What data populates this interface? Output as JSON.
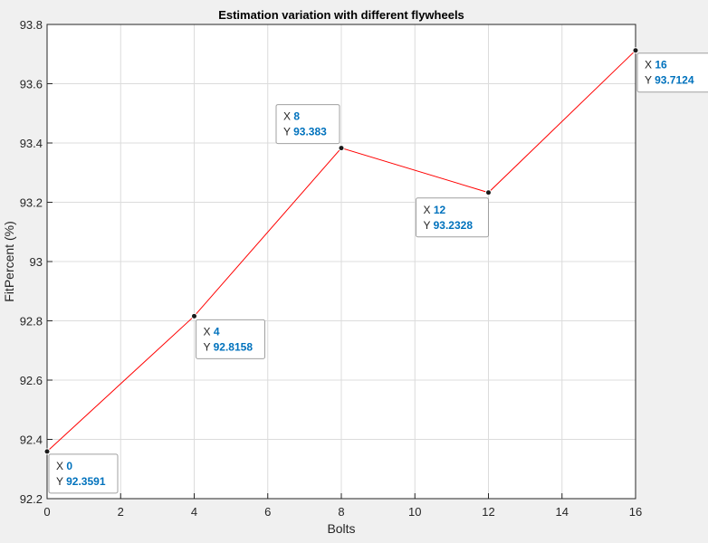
{
  "chart_data": {
    "type": "line",
    "title": "Estimation variation with different flywheels",
    "xlabel": "Bolts",
    "ylabel": "FitPercent (%)",
    "xlim": [
      0,
      16
    ],
    "ylim": [
      92.2,
      93.8
    ],
    "xticks": [
      "0",
      "2",
      "4",
      "6",
      "8",
      "10",
      "12",
      "14",
      "16"
    ],
    "yticks": [
      "92.2",
      "92.4",
      "92.6",
      "92.8",
      "93",
      "93.2",
      "93.4",
      "93.6",
      "93.8"
    ],
    "grid": true,
    "series": [
      {
        "x": [
          0,
          4,
          8,
          12,
          16
        ],
        "y": [
          92.3591,
          92.8158,
          93.383,
          93.2328,
          93.7124
        ],
        "color": "#ff0000"
      }
    ],
    "datatips": [
      {
        "x_label": "X",
        "x_value": "0",
        "y_label": "Y",
        "y_value": "92.3591"
      },
      {
        "x_label": "X",
        "x_value": "4",
        "y_label": "Y",
        "y_value": "92.8158"
      },
      {
        "x_label": "X",
        "x_value": "8",
        "y_label": "Y",
        "y_value": "93.383"
      },
      {
        "x_label": "X",
        "x_value": "12",
        "y_label": "Y",
        "y_value": "93.2328"
      },
      {
        "x_label": "X",
        "x_value": "16",
        "y_label": "Y",
        "y_value": "93.7124"
      }
    ],
    "colors": {
      "background": "#f0f0f0",
      "axes": "#ffffff",
      "grid": "#dcdcdc",
      "axis_line": "#262626",
      "datatip_value": "#0072bd",
      "datatip_border": "#a0a0a0",
      "datatip_fill": "#ffffff"
    }
  }
}
